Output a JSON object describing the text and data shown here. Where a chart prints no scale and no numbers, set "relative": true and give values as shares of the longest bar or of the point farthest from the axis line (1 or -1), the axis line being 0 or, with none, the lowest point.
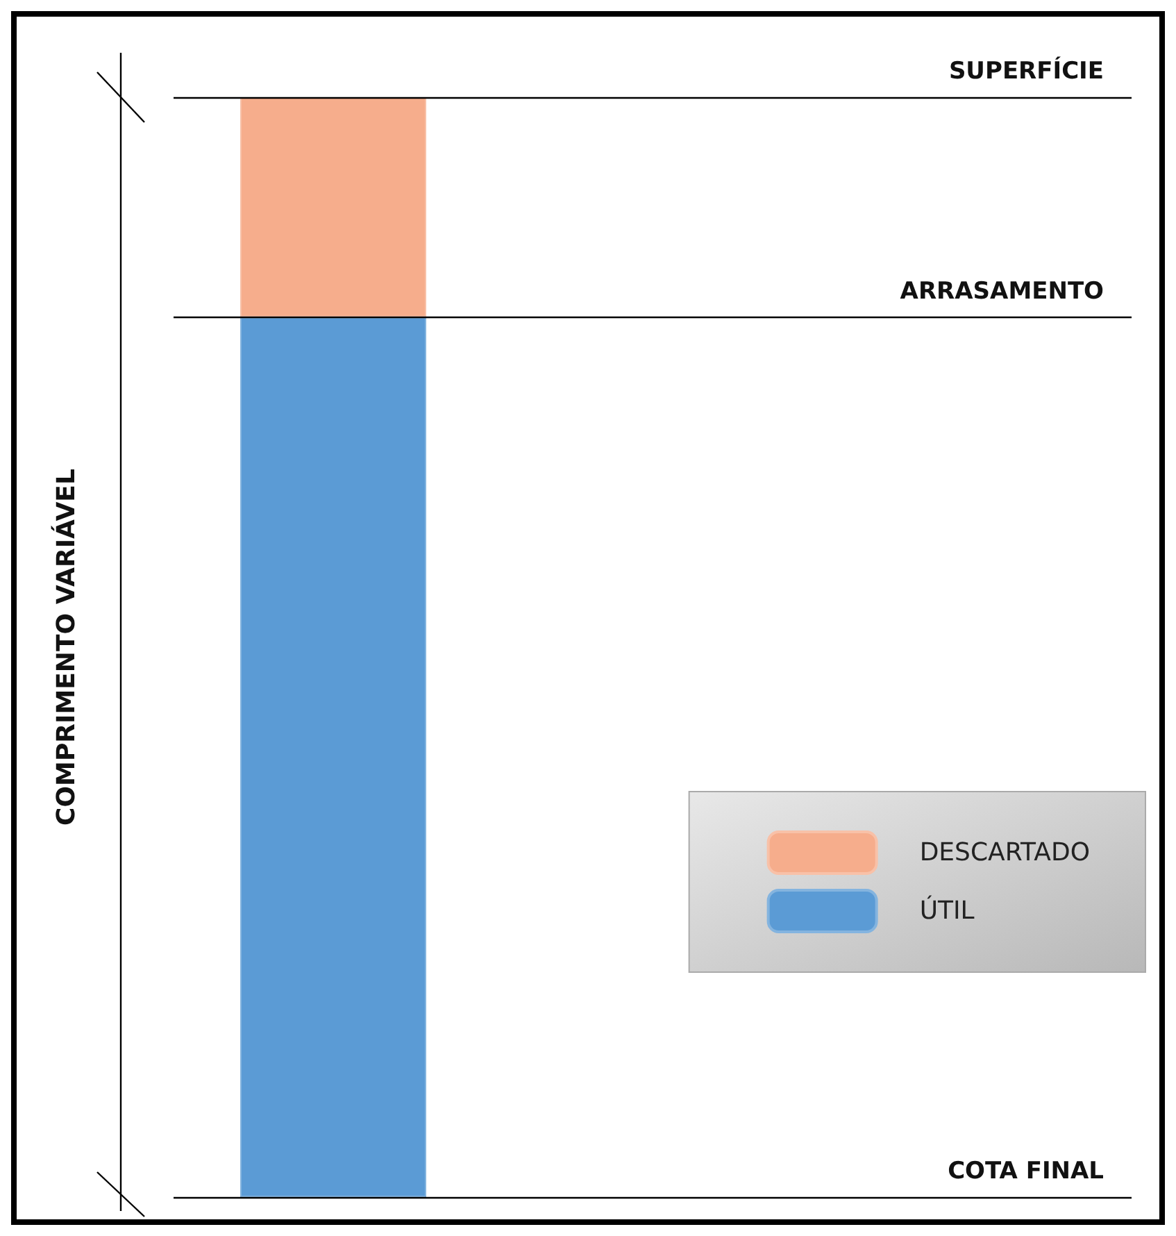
{
  "chart_data": {
    "type": "bar",
    "stacked": true,
    "relative": true,
    "annotations": [
      "COMPRIMENTO VARIÁVEL"
    ],
    "categories": [
      null
    ],
    "series": [
      {
        "name": "ÚTIL",
        "color": "#5b9bd5",
        "values": [
          0.8
        ]
      },
      {
        "name": "DESCARTADO",
        "color": "#f6ad8c",
        "values": [
          0.2
        ]
      }
    ],
    "ref_lines": [
      {
        "axis": "y",
        "value": 1,
        "label": "SUPERFÍCIE"
      },
      {
        "axis": "y",
        "value": 0.8,
        "label": "ARRASAMENTO"
      },
      {
        "axis": "y",
        "value": 0,
        "label": "COTA FINAL"
      }
    ],
    "legend": "bottom right"
  }
}
